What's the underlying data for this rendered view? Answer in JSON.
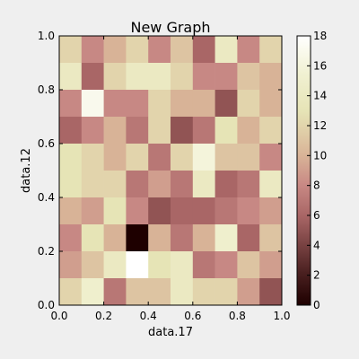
{
  "chart_data": {
    "type": "heatmap",
    "title": "New Graph",
    "xlabel": "data.17",
    "ylabel": "data.12",
    "xlim": [
      0.0,
      1.0
    ],
    "ylim": [
      0.0,
      1.0
    ],
    "x_ticks": [
      "0.0",
      "0.2",
      "0.4",
      "0.6",
      "0.8",
      "1.0"
    ],
    "y_ticks": [
      "0.0",
      "0.2",
      "0.4",
      "0.6",
      "0.8",
      "1.0"
    ],
    "colorbar": {
      "range": [
        0,
        18
      ],
      "ticks": [
        "0",
        "2",
        "4",
        "6",
        "8",
        "10",
        "12",
        "14",
        "16",
        "18"
      ],
      "colormap": "pink"
    },
    "grid": false,
    "n_bins": [
      10,
      10
    ],
    "rows_top_to_bottom": [
      [
        12,
        8,
        10,
        12,
        8,
        11,
        6,
        14,
        8,
        12
      ],
      [
        14,
        6,
        12,
        14,
        14,
        12,
        8,
        8,
        11,
        10
      ],
      [
        8,
        17,
        8,
        8,
        12,
        10,
        10,
        5,
        12,
        10
      ],
      [
        6,
        8,
        10,
        7,
        12,
        5,
        7,
        13,
        10,
        12
      ],
      [
        13,
        12,
        10,
        12,
        7,
        12,
        16,
        11,
        11,
        8
      ],
      [
        13,
        12,
        12,
        7,
        9,
        7,
        14,
        6,
        7,
        14
      ],
      [
        10,
        9,
        13,
        8,
        5,
        6,
        6,
        7,
        8,
        9
      ],
      [
        8,
        13,
        10,
        0,
        10,
        7,
        10,
        15,
        6,
        11
      ],
      [
        9,
        11,
        14,
        18,
        13,
        14,
        7,
        8,
        11,
        9
      ],
      [
        12,
        15,
        7,
        11,
        11,
        14,
        12,
        12,
        9,
        5
      ]
    ]
  }
}
